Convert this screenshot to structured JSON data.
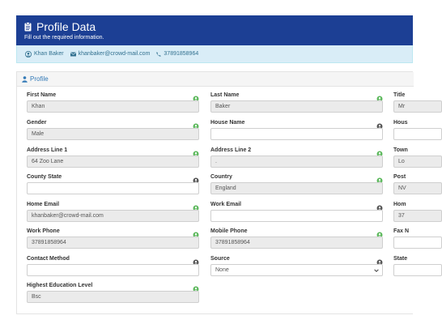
{
  "header": {
    "title": "Profile Data",
    "subtitle": "Fill out the required information."
  },
  "contact": {
    "name": "Khan Baker",
    "email": "khanbaker@crowd-mail.com",
    "phone": "37891858964"
  },
  "panel": {
    "title": "Profile"
  },
  "fields": [
    {
      "label": "First Name",
      "value": "Khan",
      "status": "ok",
      "filled": true
    },
    {
      "label": "Last Name",
      "value": "Baker",
      "status": "ok",
      "filled": true
    },
    {
      "label": "Title",
      "value": "Mr",
      "status": "ok",
      "filled": true
    },
    {
      "label": "Gender",
      "value": "Male",
      "status": "ok",
      "filled": true
    },
    {
      "label": "House Name",
      "value": "",
      "status": "empty",
      "filled": false
    },
    {
      "label": "Hous",
      "value": "",
      "status": "empty",
      "filled": false
    },
    {
      "label": "Address Line 1",
      "value": "64 Zoo Lane",
      "status": "ok",
      "filled": true
    },
    {
      "label": "Address Line 2",
      "value": ".",
      "status": "ok",
      "filled": true
    },
    {
      "label": "Town",
      "value": "Lo",
      "status": "ok",
      "filled": true
    },
    {
      "label": "County State",
      "value": "",
      "status": "empty",
      "filled": false
    },
    {
      "label": "Country",
      "value": "England",
      "status": "ok",
      "filled": true
    },
    {
      "label": "Post",
      "value": "NV",
      "status": "ok",
      "filled": true
    },
    {
      "label": "Home Email",
      "value": "khanbaker@crowd-mail.com",
      "status": "ok",
      "filled": true
    },
    {
      "label": "Work Email",
      "value": "",
      "status": "empty",
      "filled": false
    },
    {
      "label": "Hom",
      "value": "37",
      "status": "ok",
      "filled": true
    },
    {
      "label": "Work Phone",
      "value": "37891858964",
      "status": "ok",
      "filled": true
    },
    {
      "label": "Mobile Phone",
      "value": "37891858964",
      "status": "ok",
      "filled": true
    },
    {
      "label": "Fax N",
      "value": "",
      "status": "empty",
      "filled": false
    },
    {
      "label": "Contact Method",
      "value": "",
      "status": "empty",
      "filled": false
    },
    {
      "label": "Source",
      "value": "None",
      "status": "empty",
      "filled": false,
      "select": true
    },
    {
      "label": "State",
      "value": "",
      "status": "empty",
      "filled": false
    },
    {
      "label": "Highest Education Level",
      "value": "Bsc",
      "status": "ok",
      "filled": true
    }
  ],
  "colors": {
    "header_bg": "#1c3f94",
    "ok": "#5cb85c",
    "empty": "#555555",
    "info_bg": "#d9edf7"
  }
}
